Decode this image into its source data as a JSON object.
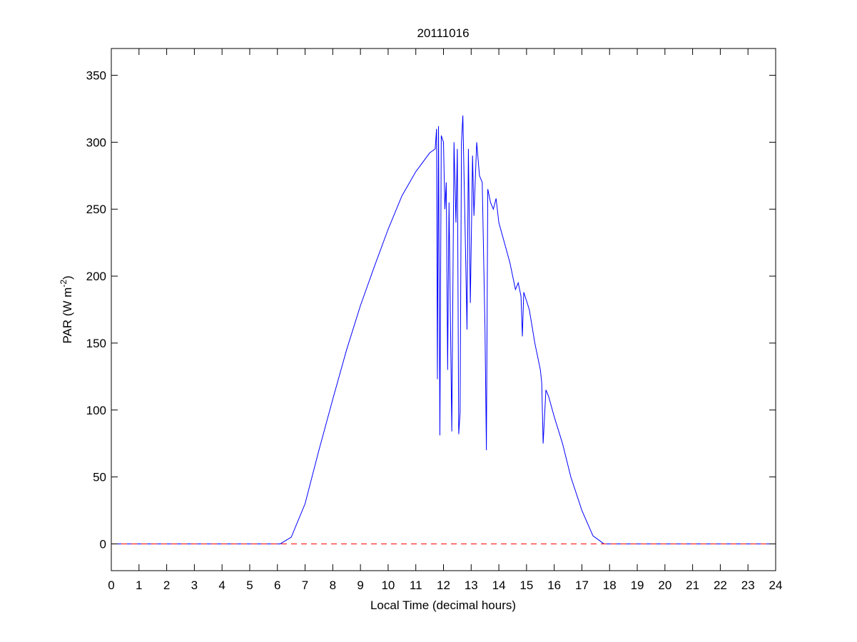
{
  "chart_data": {
    "type": "line",
    "title": "20111016",
    "xlabel": "Local Time (decimal hours)",
    "ylabel": [
      "PAR (W m",
      "-2",
      ")"
    ],
    "xlim": [
      0,
      24
    ],
    "xticks": [
      0,
      1,
      2,
      3,
      4,
      5,
      6,
      7,
      8,
      9,
      10,
      11,
      12,
      13,
      14,
      15,
      16,
      17,
      18,
      19,
      20,
      21,
      22,
      23,
      24
    ],
    "ylim": [
      -20,
      370
    ],
    "yticks": [
      0,
      50,
      100,
      150,
      200,
      250,
      300,
      350
    ],
    "grid": false,
    "series": [
      {
        "color": "#0000ff",
        "dashed": false,
        "x": [
          0,
          6.1,
          6.5,
          7,
          7.5,
          8,
          8.5,
          9,
          9.5,
          10,
          10.5,
          11,
          11.5,
          11.7,
          11.75,
          11.78,
          11.82,
          11.87,
          11.92,
          12.0,
          12.05,
          12.1,
          12.15,
          12.2,
          12.3,
          12.38,
          12.45,
          12.5,
          12.55,
          12.6,
          12.65,
          12.7,
          12.8,
          12.85,
          12.9,
          12.97,
          13.05,
          13.1,
          13.2,
          13.3,
          13.4,
          13.5,
          13.55,
          13.6,
          13.7,
          13.8,
          13.9,
          14.0,
          14.2,
          14.4,
          14.6,
          14.7,
          14.8,
          14.85,
          14.9,
          15.1,
          15.3,
          15.5,
          15.55,
          15.6,
          15.7,
          15.8,
          16,
          16.3,
          16.6,
          17,
          17.4,
          17.8,
          24
        ],
        "values": [
          0,
          0,
          5,
          30,
          70,
          108,
          145,
          178,
          207,
          235,
          260,
          278,
          292,
          295,
          310,
          123,
          312,
          81,
          305,
          300,
          250,
          270,
          130,
          255,
          84,
          300,
          240,
          295,
          82,
          98,
          300,
          320,
          215,
          160,
          295,
          180,
          290,
          245,
          300,
          275,
          270,
          160,
          70,
          265,
          255,
          250,
          258,
          240,
          225,
          210,
          190,
          195,
          185,
          155,
          188,
          175,
          150,
          130,
          120,
          75,
          115,
          110,
          95,
          75,
          50,
          25,
          6,
          0,
          0
        ]
      },
      {
        "color": "#ff0000",
        "dashed": true,
        "x": [
          0,
          24
        ],
        "values": [
          0,
          0
        ]
      }
    ]
  }
}
